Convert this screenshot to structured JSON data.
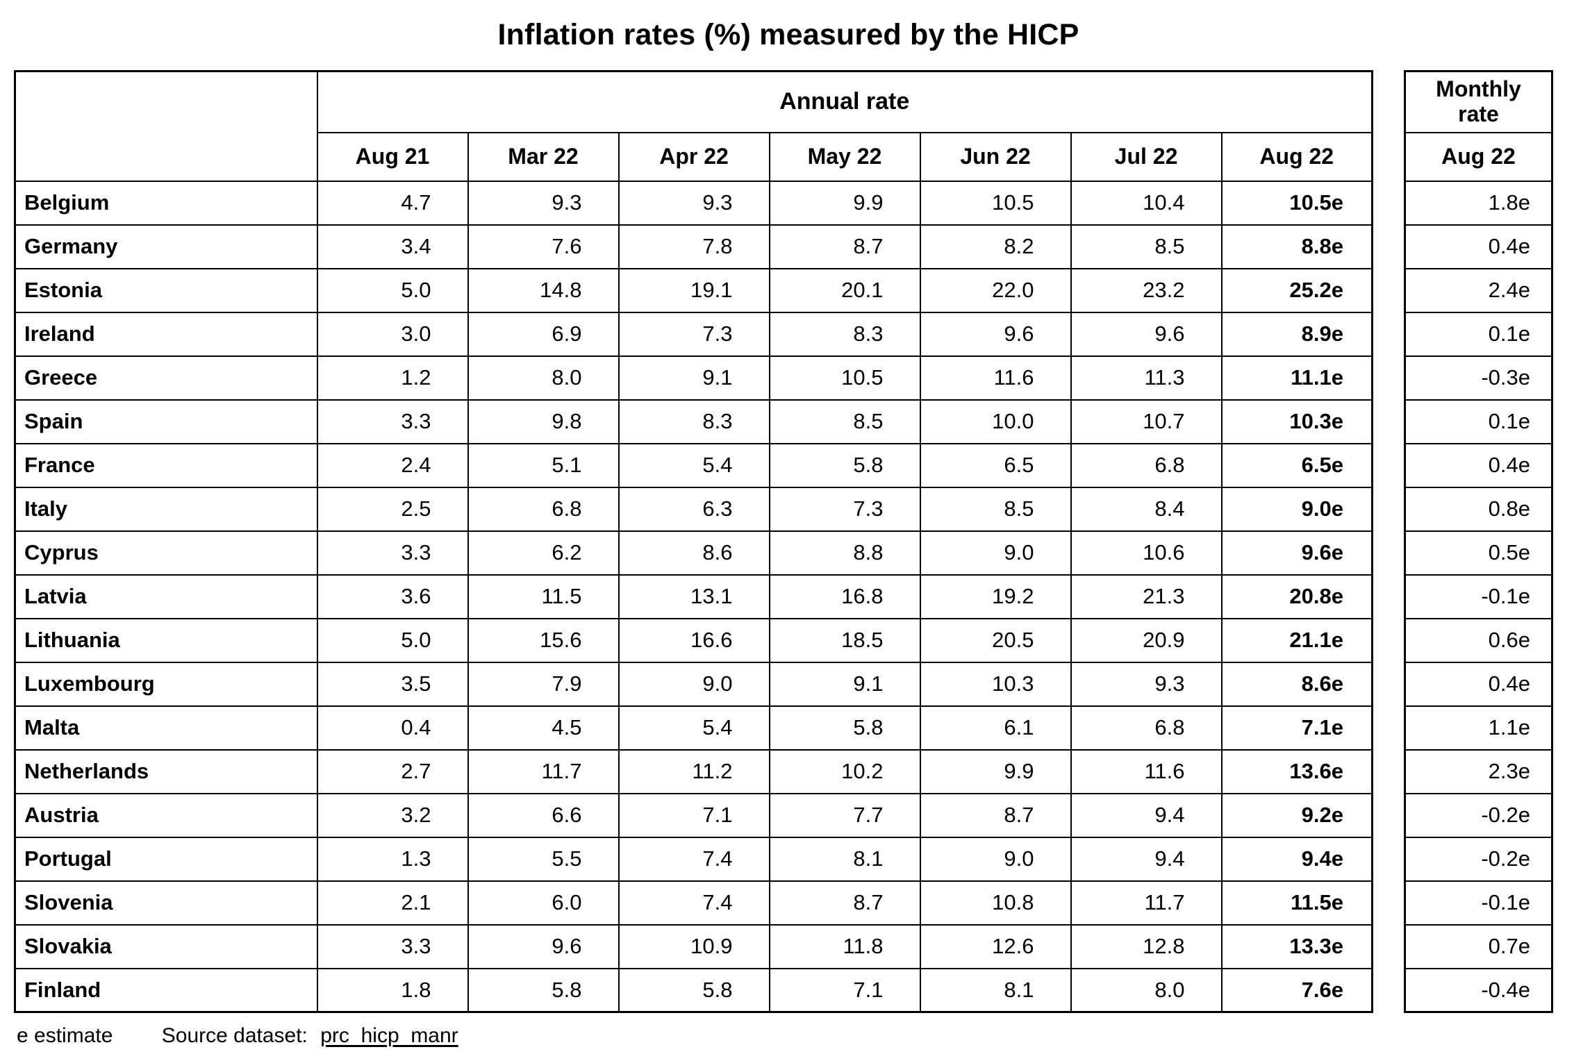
{
  "title": "Inflation rates (%) measured by the HICP",
  "chart_data": {
    "type": "table",
    "title": "Inflation rates (%) measured by the HICP",
    "annual_group_header": "Annual rate",
    "monthly_group_header_lines": [
      "Monthly",
      "rate"
    ],
    "monthly_column": "Aug 22",
    "annual_columns": [
      "Aug 21",
      "Mar 22",
      "Apr 22",
      "May 22",
      "Jun 22",
      "Jul 22",
      "Aug 22"
    ],
    "rows": [
      {
        "country": "Belgium",
        "annual": [
          "4.7",
          "9.3",
          "9.3",
          "9.9",
          "10.5",
          "10.4",
          "10.5e"
        ],
        "monthly": "1.8e"
      },
      {
        "country": "Germany",
        "annual": [
          "3.4",
          "7.6",
          "7.8",
          "8.7",
          "8.2",
          "8.5",
          "8.8e"
        ],
        "monthly": "0.4e"
      },
      {
        "country": "Estonia",
        "annual": [
          "5.0",
          "14.8",
          "19.1",
          "20.1",
          "22.0",
          "23.2",
          "25.2e"
        ],
        "monthly": "2.4e"
      },
      {
        "country": "Ireland",
        "annual": [
          "3.0",
          "6.9",
          "7.3",
          "8.3",
          "9.6",
          "9.6",
          "8.9e"
        ],
        "monthly": "0.1e"
      },
      {
        "country": "Greece",
        "annual": [
          "1.2",
          "8.0",
          "9.1",
          "10.5",
          "11.6",
          "11.3",
          "11.1e"
        ],
        "monthly": "-0.3e"
      },
      {
        "country": "Spain",
        "annual": [
          "3.3",
          "9.8",
          "8.3",
          "8.5",
          "10.0",
          "10.7",
          "10.3e"
        ],
        "monthly": "0.1e"
      },
      {
        "country": "France",
        "annual": [
          "2.4",
          "5.1",
          "5.4",
          "5.8",
          "6.5",
          "6.8",
          "6.5e"
        ],
        "monthly": "0.4e"
      },
      {
        "country": "Italy",
        "annual": [
          "2.5",
          "6.8",
          "6.3",
          "7.3",
          "8.5",
          "8.4",
          "9.0e"
        ],
        "monthly": "0.8e"
      },
      {
        "country": "Cyprus",
        "annual": [
          "3.3",
          "6.2",
          "8.6",
          "8.8",
          "9.0",
          "10.6",
          "9.6e"
        ],
        "monthly": "0.5e"
      },
      {
        "country": "Latvia",
        "annual": [
          "3.6",
          "11.5",
          "13.1",
          "16.8",
          "19.2",
          "21.3",
          "20.8e"
        ],
        "monthly": "-0.1e"
      },
      {
        "country": "Lithuania",
        "annual": [
          "5.0",
          "15.6",
          "16.6",
          "18.5",
          "20.5",
          "20.9",
          "21.1e"
        ],
        "monthly": "0.6e"
      },
      {
        "country": "Luxembourg",
        "annual": [
          "3.5",
          "7.9",
          "9.0",
          "9.1",
          "10.3",
          "9.3",
          "8.6e"
        ],
        "monthly": "0.4e"
      },
      {
        "country": "Malta",
        "annual": [
          "0.4",
          "4.5",
          "5.4",
          "5.8",
          "6.1",
          "6.8",
          "7.1e"
        ],
        "monthly": "1.1e"
      },
      {
        "country": "Netherlands",
        "annual": [
          "2.7",
          "11.7",
          "11.2",
          "10.2",
          "9.9",
          "11.6",
          "13.6e"
        ],
        "monthly": "2.3e"
      },
      {
        "country": "Austria",
        "annual": [
          "3.2",
          "6.6",
          "7.1",
          "7.7",
          "8.7",
          "9.4",
          "9.2e"
        ],
        "monthly": "-0.2e"
      },
      {
        "country": "Portugal",
        "annual": [
          "1.3",
          "5.5",
          "7.4",
          "8.1",
          "9.0",
          "9.4",
          "9.4e"
        ],
        "monthly": "-0.2e"
      },
      {
        "country": "Slovenia",
        "annual": [
          "2.1",
          "6.0",
          "7.4",
          "8.7",
          "10.8",
          "11.7",
          "11.5e"
        ],
        "monthly": "-0.1e"
      },
      {
        "country": "Slovakia",
        "annual": [
          "3.3",
          "9.6",
          "10.9",
          "11.8",
          "12.6",
          "12.8",
          "13.3e"
        ],
        "monthly": "0.7e"
      },
      {
        "country": "Finland",
        "annual": [
          "1.8",
          "5.8",
          "5.8",
          "7.1",
          "8.1",
          "8.0",
          "7.6e"
        ],
        "monthly": "-0.4e"
      }
    ]
  },
  "footer": {
    "estimate_note": "e estimate",
    "source_label": "Source dataset:",
    "source_dataset": "prc_hicp_manr"
  }
}
